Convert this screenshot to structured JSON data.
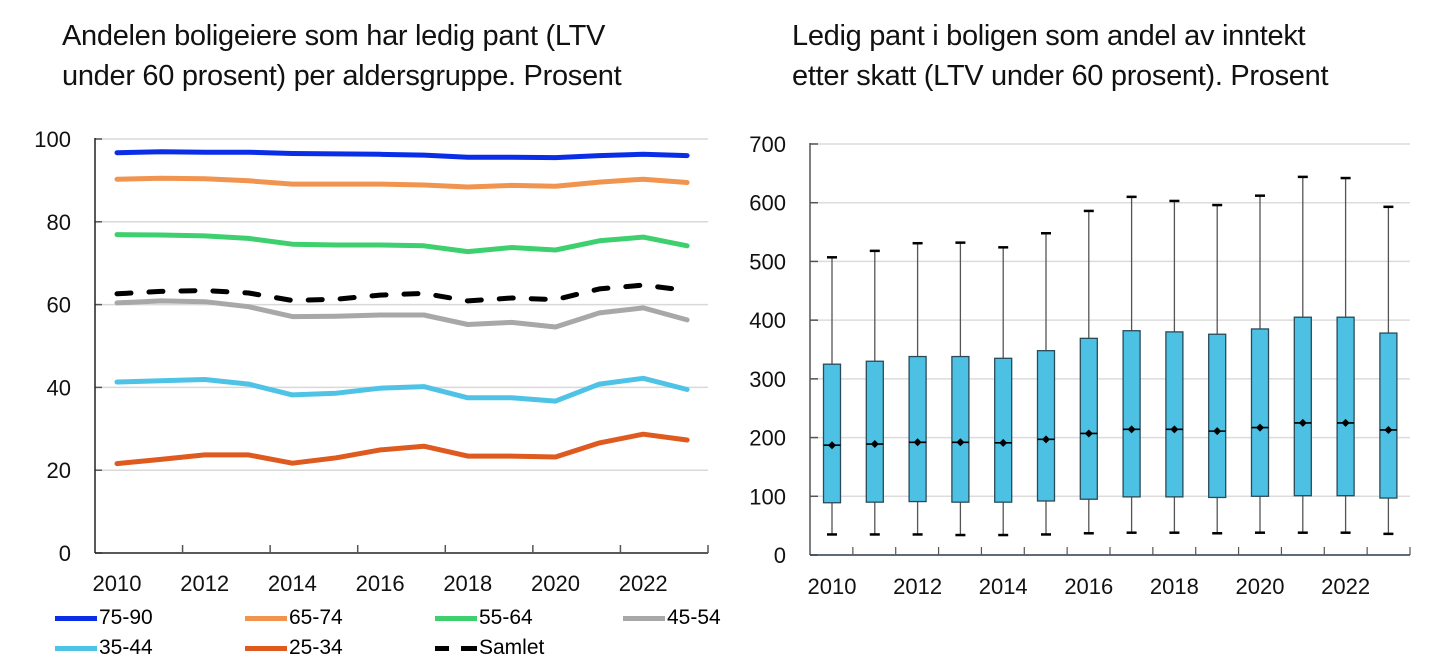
{
  "chart_data": [
    {
      "type": "line",
      "title": "Andelen boligeiere som har ledig pant (LTV under 60 prosent) per aldersgruppe. Prosent",
      "title_lines": [
        "Andelen boligeiere som har ledig pant (LTV",
        "under 60 prosent) per aldersgruppe. Prosent"
      ],
      "xlabel": "",
      "ylabel": "",
      "x": [
        2010,
        2011,
        2012,
        2013,
        2014,
        2015,
        2016,
        2017,
        2018,
        2019,
        2020,
        2021,
        2022,
        2023
      ],
      "x_tick_labels": [
        "2010",
        "2012",
        "2014",
        "2016",
        "2018",
        "2020",
        "2022"
      ],
      "ylim": [
        0,
        100
      ],
      "y_tick_labels": [
        "0",
        "20",
        "40",
        "60",
        "80",
        "100"
      ],
      "grid": true,
      "legend_position": "bottom",
      "series": [
        {
          "name": "75-90",
          "color": "#0a2ee8",
          "dashed": false,
          "values": [
            96.7,
            96.9,
            96.8,
            96.8,
            96.5,
            96.4,
            96.3,
            96.1,
            95.6,
            95.6,
            95.5,
            96.0,
            96.3,
            96.0
          ]
        },
        {
          "name": "65-74",
          "color": "#f0944f",
          "dashed": false,
          "values": [
            90.3,
            90.5,
            90.4,
            89.9,
            89.1,
            89.1,
            89.1,
            88.9,
            88.4,
            88.8,
            88.6,
            89.6,
            90.3,
            89.5
          ]
        },
        {
          "name": "55-64",
          "color": "#3ecf6e",
          "dashed": false,
          "values": [
            76.9,
            76.8,
            76.6,
            76.0,
            74.6,
            74.4,
            74.4,
            74.2,
            72.8,
            73.8,
            73.2,
            75.4,
            76.3,
            74.2
          ]
        },
        {
          "name": "45-54",
          "color": "#a8a8a8",
          "dashed": false,
          "values": [
            60.4,
            60.9,
            60.7,
            59.5,
            57.1,
            57.2,
            57.5,
            57.5,
            55.2,
            55.7,
            54.6,
            58.0,
            59.2,
            56.3
          ]
        },
        {
          "name": "35-44",
          "color": "#4fc3e6",
          "dashed": false,
          "values": [
            41.3,
            41.6,
            41.9,
            40.8,
            38.2,
            38.6,
            39.8,
            40.2,
            37.5,
            37.5,
            36.7,
            40.8,
            42.2,
            39.5
          ]
        },
        {
          "name": "25-34",
          "color": "#de5a1f",
          "dashed": false,
          "values": [
            21.6,
            22.6,
            23.7,
            23.7,
            21.7,
            23.0,
            24.9,
            25.8,
            23.4,
            23.4,
            23.2,
            26.6,
            28.7,
            27.3
          ]
        },
        {
          "name": "Samlet",
          "color": "#000000",
          "dashed": true,
          "values": [
            62.6,
            63.2,
            63.4,
            62.8,
            61.0,
            61.3,
            62.3,
            62.7,
            60.9,
            61.6,
            61.2,
            63.8,
            64.7,
            63.4
          ]
        }
      ]
    },
    {
      "type": "box",
      "title": "Ledig pant i boligen som andel av inntekt etter skatt (LTV under 60 prosent). Prosent",
      "title_lines": [
        "Ledig pant i boligen som andel av inntekt",
        "etter skatt (LTV under 60 prosent). Prosent"
      ],
      "xlabel": "",
      "ylabel": "",
      "x": [
        2010,
        2011,
        2012,
        2013,
        2014,
        2015,
        2016,
        2017,
        2018,
        2019,
        2020,
        2021,
        2022,
        2023
      ],
      "x_tick_labels": [
        "2010",
        "2012",
        "2014",
        "2016",
        "2018",
        "2020",
        "2022"
      ],
      "ylim": [
        0,
        700
      ],
      "y_tick_labels": [
        "0",
        "100",
        "200",
        "300",
        "400",
        "500",
        "600",
        "700"
      ],
      "grid": true,
      "box_color": "#4dc1e3",
      "series": [
        {
          "name": "whisker_high",
          "values": [
            507,
            518,
            531,
            532,
            524,
            548,
            586,
            610,
            603,
            596,
            612,
            644,
            642,
            593
          ]
        },
        {
          "name": "q3",
          "values": [
            325,
            330,
            338,
            338,
            335,
            348,
            369,
            382,
            380,
            376,
            385,
            405,
            405,
            378
          ]
        },
        {
          "name": "median",
          "values": [
            187,
            189,
            192,
            192,
            191,
            197,
            207,
            214,
            214,
            211,
            217,
            225,
            225,
            213
          ]
        },
        {
          "name": "q1",
          "values": [
            89,
            90,
            91,
            90,
            90,
            92,
            95,
            99,
            99,
            98,
            100,
            101,
            101,
            97
          ]
        },
        {
          "name": "whisker_low",
          "values": [
            35,
            35,
            35,
            34,
            34,
            35,
            37,
            38,
            38,
            37,
            38,
            38,
            38,
            36
          ]
        }
      ]
    }
  ],
  "legend": {
    "items": [
      {
        "label": "75-90",
        "color": "#0a2ee8",
        "dashed": false
      },
      {
        "label": "65-74",
        "color": "#f0944f",
        "dashed": false
      },
      {
        "label": "55-64",
        "color": "#3ecf6e",
        "dashed": false
      },
      {
        "label": "45-54",
        "color": "#a8a8a8",
        "dashed": false
      },
      {
        "label": "35-44",
        "color": "#4fc3e6",
        "dashed": false
      },
      {
        "label": "25-34",
        "color": "#de5a1f",
        "dashed": false
      },
      {
        "label": "Samlet",
        "color": "#000000",
        "dashed": true
      }
    ]
  }
}
